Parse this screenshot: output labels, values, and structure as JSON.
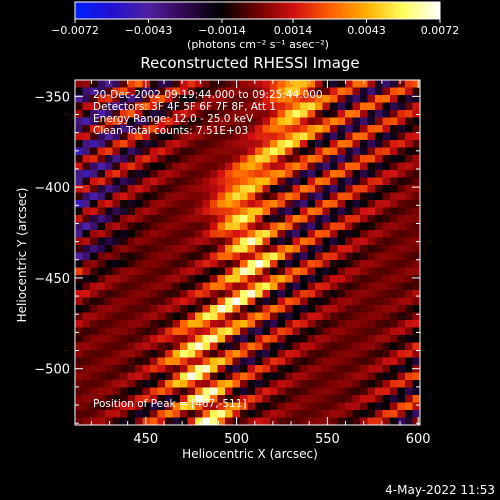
{
  "chart_data": {
    "type": "heatmap",
    "title": "Reconstructed RHESSI Image",
    "xlabel": "Heliocentric X (arcsec)",
    "ylabel": "Heliocentric Y (arcsec)",
    "xlim": [
      411,
      601
    ],
    "ylim": [
      -531,
      -341
    ],
    "x_ticks": [
      450,
      500,
      550,
      600
    ],
    "y_ticks": [
      -350,
      -400,
      -450,
      -500
    ],
    "colorbar": {
      "range": [
        -0.0072,
        0.0072
      ],
      "tick_labels": [
        "-0.0072",
        "-0.0043",
        "-0.0014",
        "0.0014",
        "0.0043",
        "0.0072"
      ],
      "unit_label": "(photons cm⁻² s⁻¹ asec⁻²)",
      "colormap": [
        "#0020ff",
        "#2010d0",
        "#5020a0",
        "#300850",
        "#000000",
        "#700000",
        "#d01010",
        "#ff6000",
        "#ffb000",
        "#ffff60",
        "#ffffff"
      ]
    },
    "annotations": [
      "20-Dec-2002 09:19:44.000 to 09:25:44.000",
      "Detectors: 3F 4F 5F 6F 7F 8F, Att 1",
      "Energy Range: 12.0 - 25.0 keV",
      "Clean    Total counts: 7.51E+03"
    ],
    "peak_label": "Position of Peak = [467,-511]",
    "peak": [
      467,
      -511
    ]
  },
  "timestamp": "4-May-2022 11:53"
}
